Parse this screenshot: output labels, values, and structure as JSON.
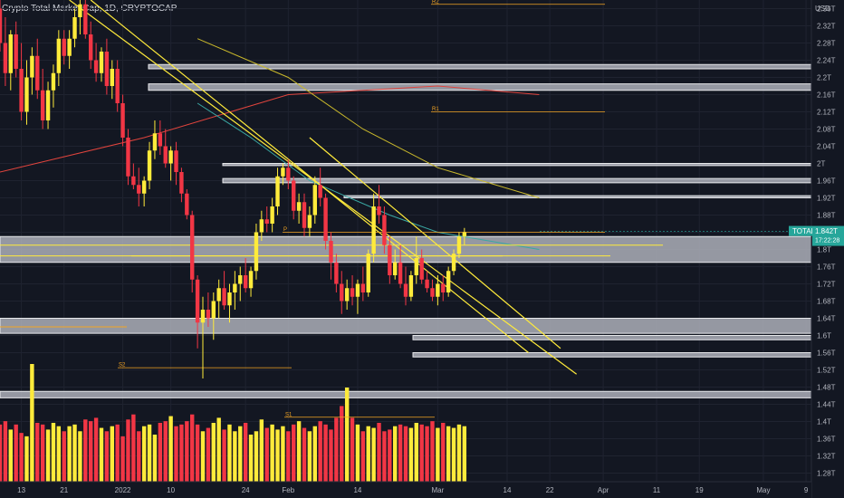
{
  "header": {
    "title": "Crypto Total Market Cap, 1D, CRYPTOCAP"
  },
  "price_axis": {
    "currency": "USD",
    "ticks": [
      "2.36T",
      "2.32T",
      "2.28T",
      "2.24T",
      "2.2T",
      "2.16T",
      "2.12T",
      "2.08T",
      "2.04T",
      "2T",
      "1.96T",
      "1.92T",
      "1.88T",
      "1.84T",
      "1.8T",
      "1.76T",
      "1.72T",
      "1.68T",
      "1.64T",
      "1.6T",
      "1.56T",
      "1.52T",
      "1.48T",
      "1.44T",
      "1.4T",
      "1.36T",
      "1.32T",
      "1.28T"
    ]
  },
  "time_axis": {
    "labels": [
      "13",
      "21",
      "2022",
      "10",
      "24",
      "Feb",
      "14",
      "Mar",
      "14",
      "22",
      "Apr",
      "11",
      "19",
      "May",
      "9"
    ]
  },
  "symbol_tag": {
    "name": "TOTAL",
    "price": "1.842T",
    "countdown": "17:22:28"
  },
  "levels": {
    "r2": "R2",
    "r1": "R1",
    "p": "P",
    "s1": "S1",
    "s2": "S2"
  },
  "colors": {
    "bull": "#ffeb3b",
    "bear": "#f23645",
    "zone": "#b2b5be",
    "hline": "#ffeb3b",
    "ma_red": "#e0443d",
    "ma_yellow": "#c9b82b",
    "ma_teal": "#3aa8a3",
    "pivot": "#f5a623"
  },
  "chart_data": {
    "type": "candlestick",
    "symbol": "TOTAL",
    "interval": "1D",
    "y_unit": "USD (trillions)",
    "ylim": [
      1.26,
      2.38
    ],
    "x_range": [
      "2021-12-09",
      "2022-05-10"
    ],
    "last_price": 1.842,
    "candles_from": "2021-12-09",
    "candles": [
      [
        2.36,
        2.4,
        2.26,
        2.28
      ],
      [
        2.28,
        2.34,
        2.18,
        2.21
      ],
      [
        2.21,
        2.31,
        2.17,
        2.3
      ],
      [
        2.3,
        2.33,
        2.2,
        2.22
      ],
      [
        2.22,
        2.28,
        2.1,
        2.12
      ],
      [
        2.12,
        2.24,
        2.09,
        2.2
      ],
      [
        2.2,
        2.27,
        2.16,
        2.25
      ],
      [
        2.25,
        2.29,
        2.15,
        2.17
      ],
      [
        2.17,
        2.22,
        2.08,
        2.1
      ],
      [
        2.1,
        2.19,
        2.08,
        2.17
      ],
      [
        2.17,
        2.23,
        2.13,
        2.21
      ],
      [
        2.21,
        2.31,
        2.18,
        2.29
      ],
      [
        2.29,
        2.31,
        2.23,
        2.25
      ],
      [
        2.25,
        2.31,
        2.22,
        2.29
      ],
      [
        2.29,
        2.36,
        2.27,
        2.34
      ],
      [
        2.34,
        2.39,
        2.3,
        2.37
      ],
      [
        2.37,
        2.4,
        2.29,
        2.3
      ],
      [
        2.3,
        2.33,
        2.22,
        2.24
      ],
      [
        2.24,
        2.28,
        2.19,
        2.21
      ],
      [
        2.21,
        2.27,
        2.19,
        2.26
      ],
      [
        2.26,
        2.29,
        2.16,
        2.18
      ],
      [
        2.18,
        2.24,
        2.15,
        2.22
      ],
      [
        2.22,
        2.24,
        2.12,
        2.14
      ],
      [
        2.14,
        2.16,
        2.04,
        2.06
      ],
      [
        2.06,
        2.08,
        1.95,
        1.97
      ],
      [
        1.97,
        2.0,
        1.94,
        1.95
      ],
      [
        1.95,
        1.99,
        1.9,
        1.93
      ],
      [
        1.93,
        1.97,
        1.9,
        1.96
      ],
      [
        1.96,
        2.05,
        1.94,
        2.03
      ],
      [
        2.03,
        2.1,
        2.01,
        2.07
      ],
      [
        2.07,
        2.1,
        2.02,
        2.04
      ],
      [
        2.04,
        2.08,
        1.99,
        2.0
      ],
      [
        2.0,
        2.04,
        1.96,
        2.03
      ],
      [
        2.03,
        2.05,
        1.95,
        1.98
      ],
      [
        1.98,
        1.99,
        1.91,
        1.93
      ],
      [
        1.93,
        1.94,
        1.87,
        1.88
      ],
      [
        1.88,
        1.89,
        1.7,
        1.73
      ],
      [
        1.73,
        1.74,
        1.57,
        1.63
      ],
      [
        1.63,
        1.69,
        1.5,
        1.66
      ],
      [
        1.66,
        1.7,
        1.62,
        1.64
      ],
      [
        1.64,
        1.7,
        1.59,
        1.68
      ],
      [
        1.68,
        1.73,
        1.64,
        1.71
      ],
      [
        1.71,
        1.75,
        1.66,
        1.67
      ],
      [
        1.67,
        1.72,
        1.63,
        1.7
      ],
      [
        1.7,
        1.75,
        1.66,
        1.72
      ],
      [
        1.72,
        1.76,
        1.68,
        1.74
      ],
      [
        1.74,
        1.78,
        1.7,
        1.71
      ],
      [
        1.71,
        1.76,
        1.69,
        1.75
      ],
      [
        1.75,
        1.86,
        1.73,
        1.84
      ],
      [
        1.84,
        1.89,
        1.82,
        1.87
      ],
      [
        1.87,
        1.9,
        1.84,
        1.86
      ],
      [
        1.86,
        1.92,
        1.84,
        1.9
      ],
      [
        1.9,
        1.99,
        1.88,
        1.97
      ],
      [
        1.97,
        2.0,
        1.95,
        1.99
      ],
      [
        1.99,
        2.01,
        1.94,
        1.96
      ],
      [
        1.96,
        1.97,
        1.87,
        1.89
      ],
      [
        1.89,
        1.93,
        1.86,
        1.91
      ],
      [
        1.91,
        1.93,
        1.83,
        1.85
      ],
      [
        1.85,
        1.9,
        1.83,
        1.88
      ],
      [
        1.88,
        1.97,
        1.86,
        1.95
      ],
      [
        1.95,
        1.99,
        1.9,
        1.92
      ],
      [
        1.92,
        1.93,
        1.8,
        1.82
      ],
      [
        1.82,
        1.84,
        1.73,
        1.77
      ],
      [
        1.77,
        1.79,
        1.7,
        1.72
      ],
      [
        1.72,
        1.75,
        1.65,
        1.68
      ],
      [
        1.68,
        1.73,
        1.66,
        1.71
      ],
      [
        1.71,
        1.74,
        1.67,
        1.69
      ],
      [
        1.69,
        1.73,
        1.65,
        1.72
      ],
      [
        1.72,
        1.76,
        1.68,
        1.7
      ],
      [
        1.7,
        1.8,
        1.69,
        1.79
      ],
      [
        1.79,
        1.93,
        1.77,
        1.9
      ],
      [
        1.9,
        1.95,
        1.86,
        1.88
      ],
      [
        1.88,
        1.9,
        1.79,
        1.81
      ],
      [
        1.81,
        1.83,
        1.72,
        1.74
      ],
      [
        1.74,
        1.8,
        1.73,
        1.77
      ],
      [
        1.77,
        1.81,
        1.71,
        1.72
      ],
      [
        1.72,
        1.76,
        1.67,
        1.69
      ],
      [
        1.69,
        1.75,
        1.68,
        1.74
      ],
      [
        1.74,
        1.83,
        1.72,
        1.78
      ],
      [
        1.78,
        1.8,
        1.72,
        1.73
      ],
      [
        1.73,
        1.75,
        1.7,
        1.71
      ],
      [
        1.71,
        1.73,
        1.68,
        1.69
      ],
      [
        1.69,
        1.74,
        1.67,
        1.72
      ],
      [
        1.72,
        1.74,
        1.68,
        1.7
      ],
      [
        1.7,
        1.76,
        1.69,
        1.75
      ],
      [
        1.75,
        1.8,
        1.74,
        1.79
      ],
      [
        1.79,
        1.84,
        1.78,
        1.83
      ],
      [
        1.83,
        1.85,
        1.81,
        1.84
      ]
    ],
    "volume": [
      34,
      36,
      31,
      34,
      29,
      27,
      70,
      35,
      34,
      31,
      35,
      33,
      30,
      33,
      34,
      30,
      37,
      36,
      38,
      32,
      30,
      33,
      34,
      27,
      37,
      40,
      30,
      33,
      34,
      28,
      35,
      36,
      39,
      33,
      34,
      36,
      40,
      34,
      30,
      32,
      35,
      38,
      31,
      34,
      30,
      33,
      35,
      28,
      30,
      37,
      32,
      34,
      31,
      33,
      30,
      34,
      36,
      32,
      30,
      33,
      36,
      34,
      31,
      38,
      45,
      56,
      38,
      34,
      30,
      33,
      32,
      35,
      30,
      31,
      33,
      34,
      33,
      32,
      35,
      34,
      33,
      36,
      32,
      35,
      33,
      32,
      34,
      33
    ],
    "moving_averages": [
      {
        "color": "red",
        "points": [
          [
            "2021-12-09",
            1.98
          ],
          [
            "2022-01-05",
            2.06
          ],
          [
            "2022-02-01",
            2.16
          ],
          [
            "2022-03-01",
            2.18
          ],
          [
            "2022-03-20",
            2.16
          ]
        ]
      },
      {
        "color": "yellow",
        "points": [
          [
            "2022-01-15",
            2.29
          ],
          [
            "2022-02-01",
            2.2
          ],
          [
            "2022-02-15",
            2.08
          ],
          [
            "2022-03-01",
            1.99
          ],
          [
            "2022-03-20",
            1.92
          ]
        ]
      },
      {
        "color": "teal",
        "points": [
          [
            "2022-01-15",
            2.14
          ],
          [
            "2022-01-25",
            2.06
          ],
          [
            "2022-02-05",
            1.96
          ],
          [
            "2022-02-20",
            1.88
          ],
          [
            "2022-03-01",
            1.84
          ],
          [
            "2022-03-20",
            1.8
          ]
        ]
      }
    ],
    "horizontal_levels": [
      1.785,
      1.785,
      1.81,
      1.62
    ],
    "trendlines": [
      {
        "from": [
          "2021-12-26",
          2.38
        ],
        "to": [
          "2022-03-18",
          1.56
        ]
      },
      {
        "from": [
          "2021-12-22",
          2.38
        ],
        "to": [
          "2022-03-27",
          1.51
        ]
      },
      {
        "from": [
          "2022-02-05",
          2.06
        ],
        "to": [
          "2022-03-24",
          1.57
        ]
      }
    ],
    "support_resistance_zones": [
      [
        2.22,
        2.23
      ],
      [
        2.17,
        2.185
      ],
      [
        1.995,
        2.0
      ],
      [
        1.955,
        1.965
      ],
      [
        1.92,
        1.925
      ],
      [
        1.77,
        1.83
      ],
      [
        1.605,
        1.64
      ],
      [
        1.59,
        1.6
      ],
      [
        1.55,
        1.56
      ],
      [
        1.455,
        1.47
      ]
    ],
    "pivot_levels": {
      "R2": 2.37,
      "R1": 2.12,
      "P": 1.84,
      "S1": 1.41,
      "S2": 1.525
    }
  }
}
